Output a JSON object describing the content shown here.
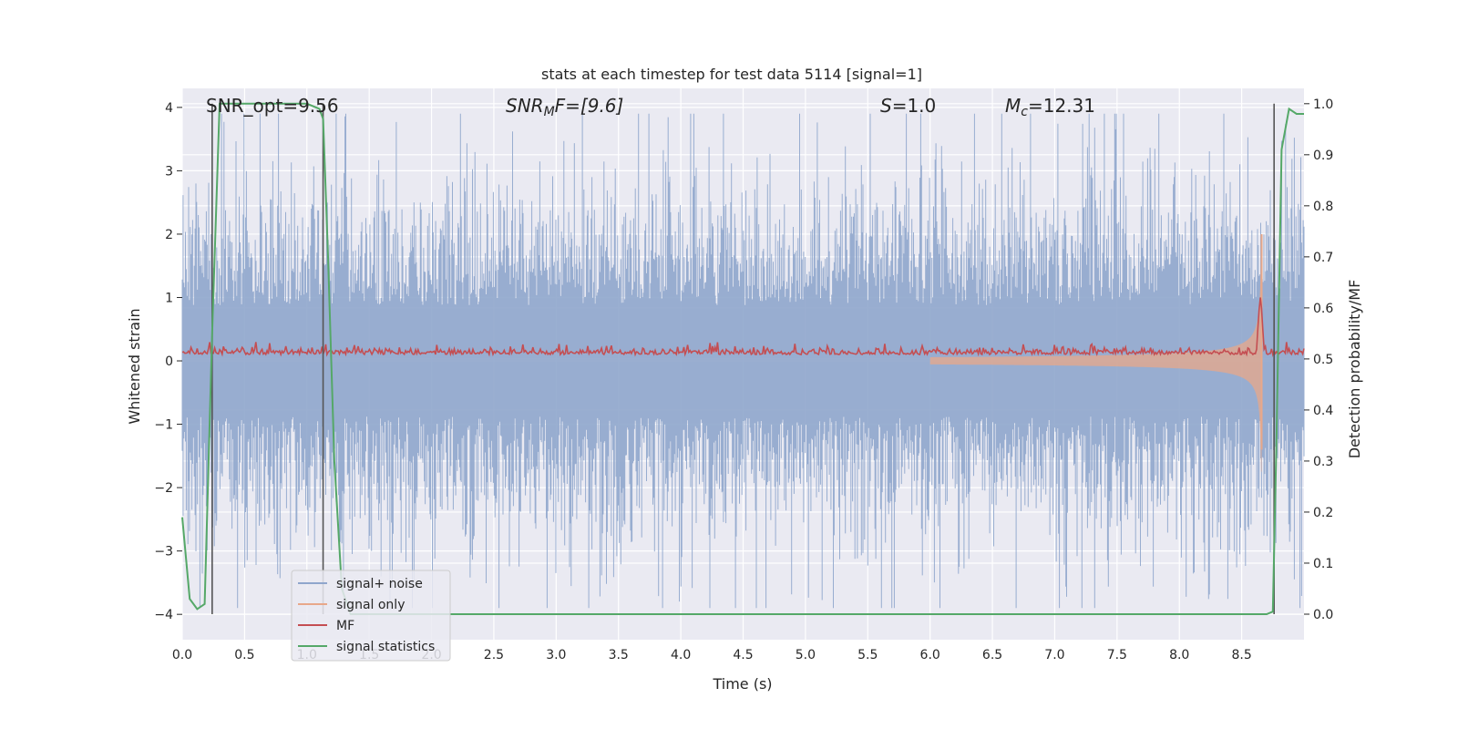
{
  "chart_data": {
    "type": "line",
    "title": "stats at each timestep for test data 5114 [signal=1]",
    "xlabel": "Time (s)",
    "ylabel": "Whitened strain",
    "y2label": "Detection probability/MF",
    "xlim": [
      0,
      9.0
    ],
    "ylim": [
      -4.4,
      4.3
    ],
    "y2lim": [
      -0.05,
      1.03
    ],
    "xticks": [
      0.0,
      0.5,
      1.0,
      1.5,
      2.0,
      2.5,
      3.0,
      3.5,
      4.0,
      4.5,
      5.0,
      5.5,
      6.0,
      6.5,
      7.0,
      7.5,
      8.0,
      8.5
    ],
    "xtick_labels": [
      "0.0",
      "0.5",
      "1.0",
      "1.5",
      "2.0",
      "2.5",
      "3.0",
      "3.5",
      "4.0",
      "4.5",
      "5.0",
      "5.5",
      "6.0",
      "6.5",
      "7.0",
      "7.5",
      "8.0",
      "8.5"
    ],
    "yticks": [
      -4,
      -3,
      -2,
      -1,
      0,
      1,
      2,
      3,
      4
    ],
    "ytick_labels": [
      "−4",
      "−3",
      "−2",
      "−1",
      "0",
      "1",
      "2",
      "3",
      "4"
    ],
    "y2ticks": [
      0.0,
      0.1,
      0.2,
      0.3,
      0.4,
      0.5,
      0.6,
      0.7,
      0.8,
      0.9,
      1.0
    ],
    "y2tick_labels": [
      "0.0",
      "0.1",
      "0.2",
      "0.3",
      "0.4",
      "0.5",
      "0.6",
      "0.7",
      "0.8",
      "0.9",
      "1.0"
    ],
    "annotations": {
      "snr_opt": "SNR_opt=9.56",
      "snr_mf_base": "SNR",
      "snr_mf_sub": "M",
      "snr_mf_rest": "F=[9.6]",
      "s_var": "S",
      "s_rest": "=1.0",
      "mc_base": "M",
      "mc_sub": "c",
      "mc_rest": "=12.31"
    },
    "vertical_markers": [
      0.24,
      1.13,
      8.76
    ],
    "series": [
      {
        "name": "signal+ noise",
        "color": "#8fa6cc",
        "kind": "noise",
        "typical_amplitude": 1.6,
        "peak_amplitude": 3.9
      },
      {
        "name": "signal only",
        "color": "#e8a88a",
        "kind": "chirp",
        "merger_time": 8.66,
        "peak_amplitude": 2.0
      },
      {
        "name": "MF",
        "color": "#c44e52",
        "kind": "mf",
        "baseline": 0.1,
        "peak_time": 8.65,
        "peak_value": 1.0
      },
      {
        "name": "signal statistics",
        "color": "#55a868",
        "kind": "probability",
        "points": [
          [
            0.0,
            0.19
          ],
          [
            0.06,
            0.03
          ],
          [
            0.12,
            0.01
          ],
          [
            0.18,
            0.02
          ],
          [
            0.24,
            0.55
          ],
          [
            0.3,
            1.0
          ],
          [
            0.4,
            1.0
          ],
          [
            0.6,
            1.0
          ],
          [
            0.8,
            1.0
          ],
          [
            1.0,
            1.0
          ],
          [
            1.1,
            0.99
          ],
          [
            1.13,
            0.97
          ],
          [
            1.17,
            0.7
          ],
          [
            1.22,
            0.3
          ],
          [
            1.28,
            0.05
          ],
          [
            1.35,
            0.0
          ],
          [
            3.0,
            0.0
          ],
          [
            6.0,
            0.0
          ],
          [
            8.0,
            0.0
          ],
          [
            8.7,
            0.0
          ],
          [
            8.75,
            0.005
          ],
          [
            8.78,
            0.35
          ],
          [
            8.82,
            0.91
          ],
          [
            8.88,
            0.99
          ],
          [
            8.94,
            0.98
          ],
          [
            9.0,
            0.98
          ]
        ]
      }
    ],
    "legend_position": "lower-left",
    "grid": true
  }
}
